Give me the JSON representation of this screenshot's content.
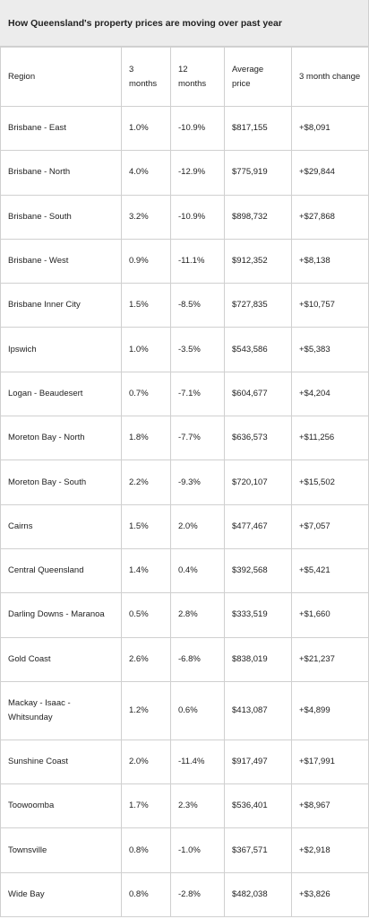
{
  "title": "How Queensland's property prices are moving over past year",
  "table": {
    "header": [
      "Region",
      "3 months",
      "12 months",
      "Average price",
      "3 month change"
    ],
    "rows": [
      [
        "Brisbane - East",
        "1.0%",
        "-10.9%",
        "$817,155",
        "+$8,091"
      ],
      [
        "Brisbane - North",
        "4.0%",
        "-12.9%",
        "$775,919",
        "+$29,844"
      ],
      [
        "Brisbane - South",
        "3.2%",
        "-10.9%",
        "$898,732",
        "+$27,868"
      ],
      [
        "Brisbane - West",
        "0.9%",
        "-11.1%",
        "$912,352",
        "+$8,138"
      ],
      [
        "Brisbane Inner City",
        "1.5%",
        "-8.5%",
        "$727,835",
        "+$10,757"
      ],
      [
        "Ipswich",
        "1.0%",
        "-3.5%",
        "$543,586",
        "+$5,383"
      ],
      [
        "Logan - Beaudesert",
        "0.7%",
        "-7.1%",
        "$604,677",
        "+$4,204"
      ],
      [
        "Moreton Bay - North",
        "1.8%",
        "-7.7%",
        "$636,573",
        "+$11,256"
      ],
      [
        "Moreton Bay - South",
        "2.2%",
        "-9.3%",
        "$720,107",
        "+$15,502"
      ],
      [
        "Cairns",
        "1.5%",
        "2.0%",
        "$477,467",
        "+$7,057"
      ],
      [
        "Central Queensland",
        "1.4%",
        "0.4%",
        "$392,568",
        "+$5,421"
      ],
      [
        "Darling Downs - Maranoa",
        "0.5%",
        "2.8%",
        "$333,519",
        "+$1,660"
      ],
      [
        "Gold Coast",
        "2.6%",
        "-6.8%",
        "$838,019",
        "+$21,237"
      ],
      [
        "Mackay - Isaac - Whitsunday",
        "1.2%",
        "0.6%",
        "$413,087",
        "+$4,899"
      ],
      [
        "Sunshine Coast",
        "2.0%",
        "-11.4%",
        "$917,497",
        "+$17,991"
      ],
      [
        "Toowoomba",
        "1.7%",
        "2.3%",
        "$536,401",
        "+$8,967"
      ],
      [
        "Townsville",
        "0.8%",
        "-1.0%",
        "$367,571",
        "+$2,918"
      ],
      [
        "Wide Bay",
        "0.8%",
        "-2.8%",
        "$482,038",
        "+$3,826"
      ]
    ]
  }
}
